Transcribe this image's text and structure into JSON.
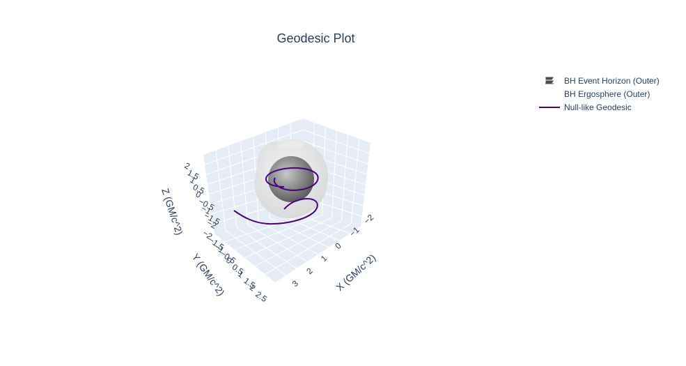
{
  "title": "Geodesic Plot",
  "legend": [
    {
      "label": "BH Event Horizon (Outer)",
      "kind": "surface",
      "color": "#4d4d4d"
    },
    {
      "label": "BH Ergosphere (Outer)",
      "kind": "surface",
      "color": "#ffffff"
    },
    {
      "label": "Null-like Geodesic",
      "kind": "line",
      "color": "#4b0082"
    }
  ],
  "chart_data": {
    "type": "3d-scatter-surface",
    "title": "Geodesic Plot",
    "xlabel": "X (GM/c^2)",
    "ylabel": "Y (GM/c^2)",
    "zlabel": "Z (GM/c^2)",
    "xrange": [
      -2,
      3
    ],
    "yrange": [
      -2,
      2.5
    ],
    "zrange": [
      -2,
      2
    ],
    "x_ticks": [
      "−2",
      "−1",
      "0",
      "1",
      "2",
      "3"
    ],
    "y_ticks": [
      "−2",
      "−1.5",
      "−1",
      "−0.5",
      "0",
      "0.5",
      "1",
      "1.5",
      "2",
      "2.5"
    ],
    "z_ticks": [
      "−2",
      "−1.5",
      "−1",
      "−0.5",
      "0",
      "0.5",
      "1",
      "1.5",
      "2"
    ],
    "background_color": "#e5ecf6",
    "grid": true,
    "legend_position": "top-right",
    "series": [
      {
        "name": "BH Event Horizon (Outer)",
        "kind": "sphere",
        "radius": 1.0,
        "color": "#808080"
      },
      {
        "name": "BH Ergosphere (Outer)",
        "kind": "oblate-surface",
        "equatorial_radius": 2.0,
        "polar_radius": 1.0,
        "color": "#e0e0e0"
      },
      {
        "name": "Null-like Geodesic",
        "kind": "spiral",
        "color": "#4b0082",
        "x": [
          3.0,
          2.7,
          2.2,
          1.6,
          1.0,
          0.4,
          -0.2,
          -0.6,
          -0.8,
          -0.7,
          -0.3,
          0.2,
          0.6,
          0.9,
          0.9,
          0.6,
          0.2,
          -0.2,
          -0.6,
          -0.8,
          -0.6,
          -0.2,
          0.2,
          0.5
        ],
        "y": [
          1.5,
          1.3,
          1.0,
          0.6,
          0.3,
          0.1,
          0.0,
          0.2,
          0.6,
          1.0,
          1.3,
          1.3,
          1.0,
          0.6,
          0.1,
          -0.3,
          -0.5,
          -0.4,
          -0.1,
          0.3,
          0.7,
          0.9,
          0.8,
          0.5
        ],
        "z": [
          0,
          0,
          0,
          0,
          0,
          0,
          0,
          0,
          0,
          0,
          0,
          0,
          0,
          0,
          0,
          0,
          0,
          0,
          0,
          0,
          0,
          0,
          0,
          0
        ]
      }
    ]
  }
}
